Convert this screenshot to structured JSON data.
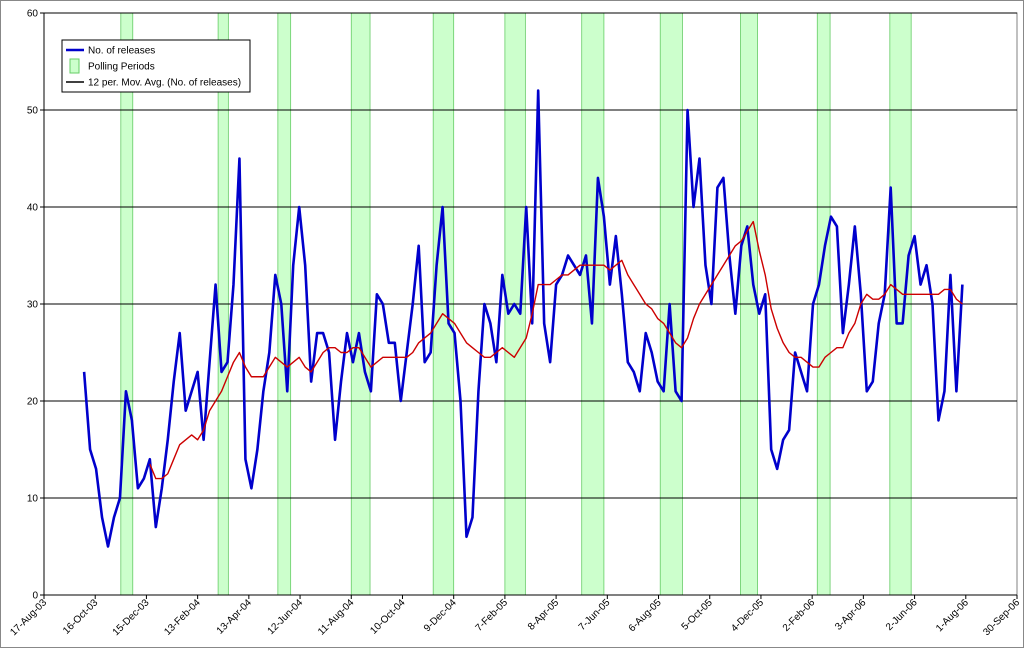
{
  "chart_data": {
    "type": "line",
    "xlim": [
      "2003-08-17",
      "2006-09-30"
    ],
    "xticks": [
      {
        "value": "2003-08-17",
        "label": "17-Aug-03"
      },
      {
        "value": "2003-10-16",
        "label": "16-Oct-03"
      },
      {
        "value": "2003-12-15",
        "label": "15-Dec-03"
      },
      {
        "value": "2004-02-13",
        "label": "13-Feb-04"
      },
      {
        "value": "2004-04-13",
        "label": "13-Apr-04"
      },
      {
        "value": "2004-06-12",
        "label": "12-Jun-04"
      },
      {
        "value": "2004-08-11",
        "label": "11-Aug-04"
      },
      {
        "value": "2004-10-10",
        "label": "10-Oct-04"
      },
      {
        "value": "2004-12-09",
        "label": "9-Dec-04"
      },
      {
        "value": "2005-02-07",
        "label": "7-Feb-05"
      },
      {
        "value": "2005-04-08",
        "label": "8-Apr-05"
      },
      {
        "value": "2005-06-07",
        "label": "7-Jun-05"
      },
      {
        "value": "2005-08-06",
        "label": "6-Aug-05"
      },
      {
        "value": "2005-10-05",
        "label": "5-Oct-05"
      },
      {
        "value": "2005-12-04",
        "label": "4-Dec-05"
      },
      {
        "value": "2006-02-02",
        "label": "2-Feb-06"
      },
      {
        "value": "2006-04-03",
        "label": "3-Apr-06"
      },
      {
        "value": "2006-06-02",
        "label": "2-Jun-06"
      },
      {
        "value": "2006-08-01",
        "label": "1-Aug-06"
      },
      {
        "value": "2006-09-30",
        "label": "30-Sep-06"
      }
    ],
    "ylim": [
      0,
      60
    ],
    "yticks": [
      0,
      10,
      20,
      30,
      40,
      50,
      60
    ],
    "grid": true,
    "legend": "top-left",
    "x": [
      "2003-10-03",
      "2003-10-10",
      "2003-10-17",
      "2003-10-24",
      "2003-10-31",
      "2003-11-07",
      "2003-11-14",
      "2003-11-21",
      "2003-11-28",
      "2003-12-05",
      "2003-12-12",
      "2003-12-19",
      "2003-12-26",
      "2004-01-02",
      "2004-01-09",
      "2004-01-16",
      "2004-01-23",
      "2004-01-30",
      "2004-02-06",
      "2004-02-13",
      "2004-02-20",
      "2004-02-27",
      "2004-03-05",
      "2004-03-12",
      "2004-03-19",
      "2004-03-26",
      "2004-04-02",
      "2004-04-09",
      "2004-04-16",
      "2004-04-23",
      "2004-04-30",
      "2004-05-07",
      "2004-05-14",
      "2004-05-21",
      "2004-05-28",
      "2004-06-04",
      "2004-06-11",
      "2004-06-18",
      "2004-06-25",
      "2004-07-02",
      "2004-07-09",
      "2004-07-16",
      "2004-07-23",
      "2004-07-30",
      "2004-08-06",
      "2004-08-13",
      "2004-08-20",
      "2004-08-27",
      "2004-09-03",
      "2004-09-10",
      "2004-09-17",
      "2004-09-24",
      "2004-10-01",
      "2004-10-08",
      "2004-10-15",
      "2004-10-22",
      "2004-10-29",
      "2004-11-05",
      "2004-11-12",
      "2004-11-19",
      "2004-11-26",
      "2004-12-03",
      "2004-12-10",
      "2004-12-17",
      "2004-12-24",
      "2004-12-31",
      "2005-01-07",
      "2005-01-14",
      "2005-01-21",
      "2005-01-28",
      "2005-02-04",
      "2005-02-11",
      "2005-02-18",
      "2005-02-25",
      "2005-03-04",
      "2005-03-11",
      "2005-03-18",
      "2005-03-25",
      "2005-04-01",
      "2005-04-08",
      "2005-04-15",
      "2005-04-22",
      "2005-04-29",
      "2005-05-06",
      "2005-05-13",
      "2005-05-20",
      "2005-05-27",
      "2005-06-03",
      "2005-06-10",
      "2005-06-17",
      "2005-06-24",
      "2005-07-01",
      "2005-07-08",
      "2005-07-15",
      "2005-07-22",
      "2005-07-29",
      "2005-08-05",
      "2005-08-12",
      "2005-08-19",
      "2005-08-26",
      "2005-09-02",
      "2005-09-09",
      "2005-09-16",
      "2005-09-23",
      "2005-09-30",
      "2005-10-07",
      "2005-10-14",
      "2005-10-21",
      "2005-10-28",
      "2005-11-04",
      "2005-11-11",
      "2005-11-18",
      "2005-11-25",
      "2005-12-02",
      "2005-12-09",
      "2005-12-16",
      "2005-12-23",
      "2005-12-30",
      "2006-01-06",
      "2006-01-13",
      "2006-01-20",
      "2006-01-27",
      "2006-02-03",
      "2006-02-10",
      "2006-02-17",
      "2006-02-24",
      "2006-03-03",
      "2006-03-10",
      "2006-03-17",
      "2006-03-24",
      "2006-03-31",
      "2006-04-07",
      "2006-04-14",
      "2006-04-21",
      "2006-04-28",
      "2006-05-05",
      "2006-05-12",
      "2006-05-19",
      "2006-05-26",
      "2006-06-02",
      "2006-06-09",
      "2006-06-16",
      "2006-06-23",
      "2006-06-30",
      "2006-07-07",
      "2006-07-14",
      "2006-07-21",
      "2006-07-28"
    ],
    "series": [
      {
        "name": "No. of releases",
        "color": "#0000cc",
        "values": [
          23,
          15,
          13,
          8,
          5,
          8,
          10,
          21,
          18,
          11,
          12,
          14,
          7,
          11,
          16,
          22,
          27,
          19,
          21,
          23,
          16,
          24,
          32,
          23,
          24,
          32,
          45,
          14,
          11,
          15,
          21,
          25,
          33,
          30,
          21,
          34,
          40,
          34,
          22,
          27,
          27,
          25,
          16,
          22,
          27,
          24,
          27,
          23,
          21,
          31,
          30,
          26,
          26,
          20,
          25,
          30,
          36,
          24,
          25,
          34,
          40,
          28,
          27,
          20,
          6,
          8,
          21,
          30,
          28,
          24,
          33,
          29,
          30,
          29,
          40,
          28,
          52,
          28,
          24,
          32,
          33,
          35,
          34,
          33,
          35,
          28,
          43,
          39,
          32,
          37,
          31,
          24,
          23,
          21,
          27,
          25,
          22,
          21,
          30,
          21,
          20,
          50,
          40,
          45,
          34,
          30,
          42,
          43,
          35,
          29,
          36,
          38,
          32,
          29,
          31,
          15,
          13,
          16,
          17,
          25,
          23,
          21,
          30,
          32,
          36,
          39,
          38,
          27,
          32,
          38,
          31,
          21,
          22,
          28,
          31,
          42,
          28,
          28,
          35,
          37,
          32,
          34,
          30,
          18,
          21,
          33,
          21,
          32
        ]
      },
      {
        "name": "12 per. Mov. Avg. (No. of releases)",
        "color": "#cc0000",
        "legend_color": "#000000",
        "values": [
          null,
          null,
          null,
          null,
          null,
          null,
          null,
          null,
          null,
          null,
          null,
          13.5,
          12,
          12,
          12.5,
          14,
          15.5,
          16,
          16.5,
          16,
          17,
          19,
          20,
          21,
          22.5,
          24,
          25,
          23.5,
          22.5,
          22.5,
          22.5,
          23.5,
          24.5,
          24,
          23.5,
          24,
          24.5,
          23.5,
          23,
          24,
          25,
          25.5,
          25.5,
          25,
          25,
          25.5,
          25.5,
          24.5,
          23.5,
          24,
          24.5,
          24.5,
          24.5,
          24.5,
          24.5,
          25,
          26,
          26.5,
          27,
          28,
          29,
          28.5,
          28,
          27,
          26,
          25.5,
          25,
          24.5,
          24.5,
          25,
          25.5,
          25,
          24.5,
          25.5,
          26.5,
          29,
          32,
          32,
          32,
          32.5,
          33,
          33,
          33.5,
          34,
          34,
          34,
          34,
          34,
          33.5,
          34,
          34.5,
          33,
          32,
          31,
          30,
          29.5,
          28.5,
          28,
          27,
          26,
          25.5,
          26.5,
          28.5,
          30,
          31,
          32,
          33,
          34,
          35,
          36,
          36.5,
          37.5,
          38.5,
          35.5,
          33,
          29.5,
          27.5,
          26,
          25,
          24.5,
          24.5,
          24,
          23.5,
          23.5,
          24.5,
          25,
          25.5,
          25.5,
          27,
          28,
          30,
          31,
          30.5,
          30.5,
          31,
          32,
          31.5,
          31,
          31,
          31,
          31,
          31,
          31,
          31,
          31.5,
          31.5,
          30.5,
          30
        ]
      }
    ],
    "polling_periods": {
      "name": "Polling Periods",
      "color": "#ccffcc",
      "edge_color": "#66cc66",
      "ranges": [
        [
          "2003-11-15",
          "2003-11-29"
        ],
        [
          "2004-03-08",
          "2004-03-20"
        ],
        [
          "2004-05-17",
          "2004-06-01"
        ],
        [
          "2004-08-11",
          "2004-09-02"
        ],
        [
          "2004-11-15",
          "2004-12-09"
        ],
        [
          "2005-02-07",
          "2005-03-03"
        ],
        [
          "2005-05-08",
          "2005-06-03"
        ],
        [
          "2005-08-08",
          "2005-09-03"
        ],
        [
          "2005-11-10",
          "2005-11-30"
        ],
        [
          "2006-02-08",
          "2006-02-23"
        ],
        [
          "2006-05-04",
          "2006-05-29"
        ]
      ]
    }
  }
}
